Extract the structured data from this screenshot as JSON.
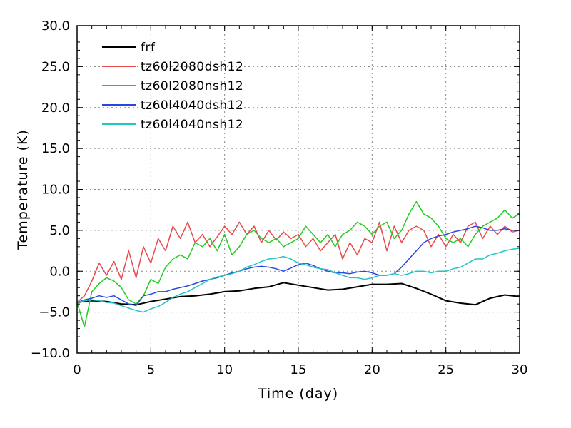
{
  "chart_data": {
    "type": "line",
    "xlabel": "Time (day)",
    "ylabel": "Temperature (K)",
    "xlim": [
      0,
      30
    ],
    "ylim": [
      -10,
      30
    ],
    "xticks": [
      0,
      5,
      10,
      15,
      20,
      25,
      30
    ],
    "yticks": [
      -10.0,
      -5.0,
      0.0,
      5.0,
      10.0,
      15.0,
      20.0,
      25.0,
      30.0
    ],
    "xtick_labels": [
      "0",
      "5",
      "10",
      "15",
      "20",
      "25",
      "30"
    ],
    "ytick_labels": [
      "−10.0",
      "−5.0",
      "0.0",
      "5.0",
      "10.0",
      "15.0",
      "20.0",
      "25.0",
      "30.0"
    ],
    "grid": true,
    "legend_position": "top-left",
    "series": [
      {
        "name": "frf",
        "color": "#000000",
        "x": [
          0,
          1,
          2,
          3,
          4,
          5,
          6,
          7,
          8,
          9,
          10,
          11,
          12,
          13,
          14,
          15,
          16,
          17,
          18,
          19,
          20,
          21,
          22,
          23,
          24,
          25,
          26,
          27,
          28,
          29,
          30
        ],
        "y": [
          -3.8,
          -3.6,
          -3.7,
          -4.0,
          -4.1,
          -3.7,
          -3.4,
          -3.1,
          -3.0,
          -2.8,
          -2.5,
          -2.4,
          -2.1,
          -1.9,
          -1.4,
          -1.7,
          -2.0,
          -2.3,
          -2.2,
          -1.9,
          -1.6,
          -1.6,
          -1.5,
          -2.1,
          -2.8,
          -3.6,
          -3.9,
          -4.1,
          -3.3,
          -2.9,
          -3.1
        ]
      },
      {
        "name": "tz60l2080dsh12",
        "color": "#e84a4a",
        "x": [
          0,
          0.5,
          1,
          1.5,
          2,
          2.5,
          3,
          3.5,
          4,
          4.5,
          5,
          5.5,
          6,
          6.5,
          7,
          7.5,
          8,
          8.5,
          9,
          9.5,
          10,
          10.5,
          11,
          11.5,
          12,
          12.5,
          13,
          13.5,
          14,
          14.5,
          15,
          15.5,
          16,
          16.5,
          17,
          17.5,
          18,
          18.5,
          19,
          19.5,
          20,
          20.5,
          21,
          21.5,
          22,
          22.5,
          23,
          23.5,
          24,
          24.5,
          25,
          25.5,
          26,
          26.5,
          27,
          27.5,
          28,
          28.5,
          29,
          29.5,
          30
        ],
        "y": [
          -3.8,
          -3.0,
          -1.2,
          1.0,
          -0.5,
          1.2,
          -1.0,
          2.5,
          -0.8,
          3.0,
          1.0,
          4.0,
          2.5,
          5.5,
          4.0,
          6.0,
          3.5,
          4.5,
          3.0,
          4.2,
          5.5,
          4.5,
          6.0,
          4.5,
          5.5,
          3.5,
          5.0,
          3.8,
          4.8,
          4.0,
          4.5,
          3.0,
          4.0,
          2.5,
          3.5,
          4.5,
          1.5,
          3.5,
          2.0,
          4.0,
          3.5,
          6.0,
          2.5,
          5.5,
          3.5,
          5.0,
          5.5,
          5.0,
          3.0,
          4.5,
          3.0,
          4.5,
          3.5,
          5.5,
          6.0,
          4.0,
          5.5,
          4.5,
          5.5,
          4.8,
          5.0
        ]
      },
      {
        "name": "tz60l2080nsh12",
        "color": "#22cc22",
        "x": [
          0,
          0.5,
          1,
          1.5,
          2,
          2.5,
          3,
          3.5,
          4,
          4.5,
          5,
          5.5,
          6,
          6.5,
          7,
          7.5,
          8,
          8.5,
          9,
          9.5,
          10,
          10.5,
          11,
          11.5,
          12,
          12.5,
          13,
          13.5,
          14,
          14.5,
          15,
          15.5,
          16,
          16.5,
          17,
          17.5,
          18,
          18.5,
          19,
          19.5,
          20,
          20.5,
          21,
          21.5,
          22,
          22.5,
          23,
          23.5,
          24,
          24.5,
          25,
          25.5,
          26,
          26.5,
          27,
          27.5,
          28,
          28.5,
          29,
          29.5,
          30
        ],
        "y": [
          -3.8,
          -6.8,
          -2.5,
          -1.5,
          -0.8,
          -1.2,
          -2.0,
          -3.5,
          -4.0,
          -3.0,
          -1.0,
          -1.5,
          0.5,
          1.5,
          2.0,
          1.5,
          3.5,
          3.0,
          4.0,
          2.5,
          4.5,
          2.0,
          3.0,
          4.5,
          5.0,
          4.0,
          3.5,
          4.0,
          3.0,
          3.5,
          4.0,
          5.5,
          4.5,
          3.5,
          4.5,
          3.0,
          4.5,
          5.0,
          6.0,
          5.5,
          4.5,
          5.5,
          6.0,
          4.0,
          5.0,
          7.0,
          8.5,
          7.0,
          6.5,
          5.5,
          4.0,
          3.5,
          4.0,
          3.0,
          4.5,
          5.5,
          6.0,
          6.5,
          7.5,
          6.5,
          7.0
        ]
      },
      {
        "name": "tz60l4040dsh12",
        "color": "#2a46e0",
        "x": [
          0,
          0.5,
          1,
          1.5,
          2,
          2.5,
          3,
          3.5,
          4,
          4.5,
          5,
          5.5,
          6,
          6.5,
          7,
          7.5,
          8,
          8.5,
          9,
          9.5,
          10,
          10.5,
          11,
          11.5,
          12,
          12.5,
          13,
          13.5,
          14,
          14.5,
          15,
          15.5,
          16,
          16.5,
          17,
          17.5,
          18,
          18.5,
          19,
          19.5,
          20,
          20.5,
          21,
          21.5,
          22,
          22.5,
          23,
          23.5,
          24,
          24.5,
          25,
          25.5,
          26,
          26.5,
          27,
          27.5,
          28,
          28.5,
          29,
          29.5,
          30
        ],
        "y": [
          -3.8,
          -3.5,
          -3.3,
          -3.0,
          -3.2,
          -3.0,
          -3.5,
          -4.0,
          -4.2,
          -3.0,
          -2.8,
          -2.5,
          -2.5,
          -2.2,
          -2.0,
          -1.8,
          -1.5,
          -1.2,
          -1.0,
          -0.8,
          -0.5,
          -0.2,
          0.0,
          0.3,
          0.5,
          0.6,
          0.5,
          0.3,
          0.0,
          0.4,
          0.8,
          1.0,
          0.7,
          0.3,
          0.0,
          -0.2,
          -0.2,
          -0.3,
          -0.1,
          0.0,
          -0.2,
          -0.5,
          -0.5,
          -0.3,
          0.5,
          1.5,
          2.5,
          3.5,
          4.0,
          4.3,
          4.5,
          4.8,
          5.0,
          5.2,
          5.5,
          5.3,
          5.0,
          5.0,
          5.2,
          5.0,
          5.0
        ]
      },
      {
        "name": "tz60l4040nsh12",
        "color": "#22c4c4",
        "x": [
          0,
          0.5,
          1,
          1.5,
          2,
          2.5,
          3,
          3.5,
          4,
          4.5,
          5,
          5.5,
          6,
          6.5,
          7,
          7.5,
          8,
          8.5,
          9,
          9.5,
          10,
          10.5,
          11,
          11.5,
          12,
          12.5,
          13,
          13.5,
          14,
          14.5,
          15,
          15.5,
          16,
          16.5,
          17,
          17.5,
          18,
          18.5,
          19,
          19.5,
          20,
          20.5,
          21,
          21.5,
          22,
          22.5,
          23,
          23.5,
          24,
          24.5,
          25,
          25.5,
          26,
          26.5,
          27,
          27.5,
          28,
          28.5,
          29,
          29.5,
          30
        ],
        "y": [
          -3.8,
          -3.6,
          -3.5,
          -3.6,
          -3.8,
          -3.9,
          -4.2,
          -4.5,
          -4.8,
          -5.0,
          -4.6,
          -4.3,
          -3.8,
          -3.2,
          -2.8,
          -2.5,
          -2.0,
          -1.5,
          -1.0,
          -0.7,
          -0.5,
          -0.3,
          0.0,
          0.5,
          0.8,
          1.2,
          1.5,
          1.6,
          1.8,
          1.5,
          1.0,
          0.8,
          0.5,
          0.3,
          0.2,
          -0.2,
          -0.5,
          -0.8,
          -0.8,
          -1.0,
          -0.8,
          -0.5,
          -0.5,
          -0.3,
          -0.5,
          -0.3,
          0.0,
          0.0,
          -0.2,
          0.0,
          0.0,
          0.3,
          0.5,
          1.0,
          1.5,
          1.5,
          2.0,
          2.2,
          2.5,
          2.7,
          2.8
        ]
      }
    ]
  }
}
